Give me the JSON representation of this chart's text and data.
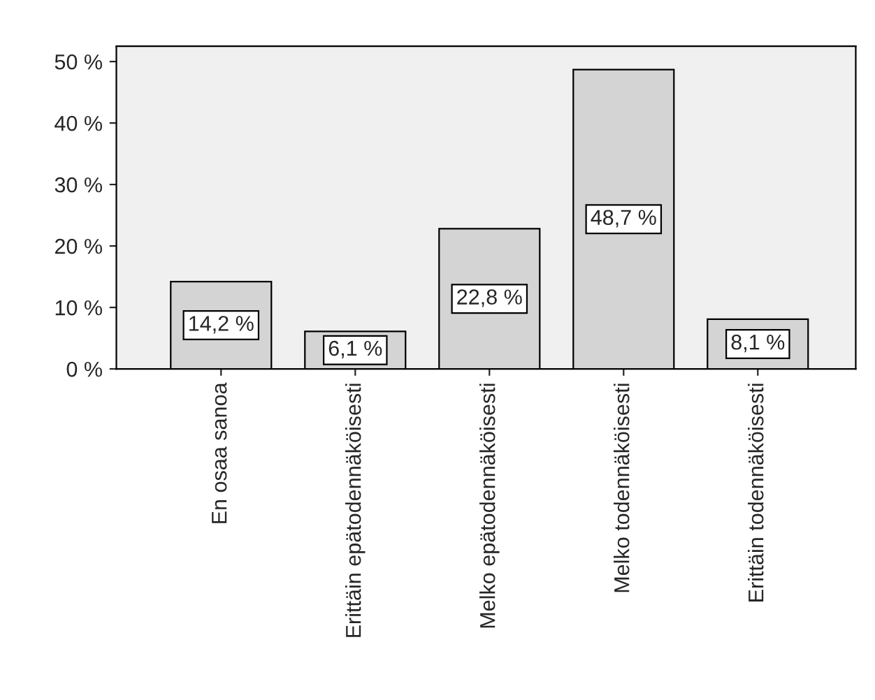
{
  "chart_data": {
    "type": "bar",
    "categories": [
      "En osaa sanoa",
      "Erittäin epätodennäköisesti",
      "Melko epätodennäköisesti",
      "Melko todennäköisesti",
      "Erittäin todennäköisesti"
    ],
    "values": [
      14.2,
      6.1,
      22.8,
      48.7,
      8.1
    ],
    "value_labels": [
      "14,2 %",
      "6,1 %",
      "22,8 %",
      "48,7 %",
      "8,1 %"
    ],
    "color": "#d4d4d4",
    "ylim": [
      0,
      52.5
    ],
    "yticks": [
      {
        "value": 0,
        "label": "0 %"
      },
      {
        "value": 10,
        "label": "10 %"
      },
      {
        "value": 20,
        "label": "20 %"
      },
      {
        "value": 30,
        "label": "30 %"
      },
      {
        "value": 40,
        "label": "40 %"
      },
      {
        "value": 50,
        "label": "50 %"
      }
    ],
    "grid": false,
    "legend": false
  }
}
